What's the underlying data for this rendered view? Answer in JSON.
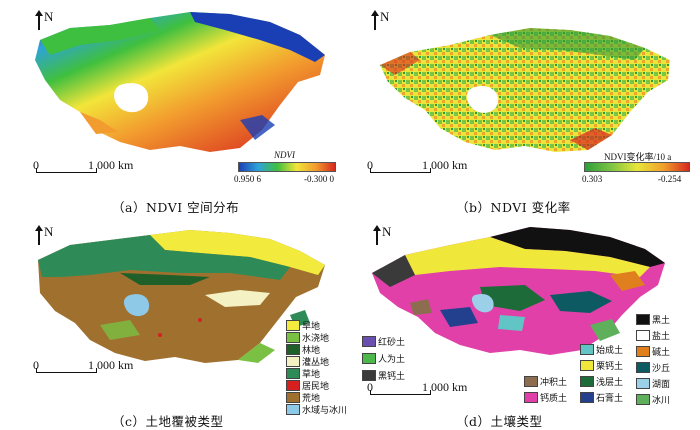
{
  "panels": {
    "a": {
      "caption": "（a）NDVI 空间分布",
      "north_label": "N",
      "scale_zero": "0",
      "scale_distance": "1 000 km",
      "colorbar": {
        "title": "NDVI",
        "left_label": "0.950 6",
        "right_label": "-0.300 0",
        "colors": [
          "#1a3fb5",
          "#2ea3d8",
          "#3fbf3f",
          "#f2e53a",
          "#f29b2e",
          "#d7281e"
        ]
      }
    },
    "b": {
      "caption": "（b）NDVI 变化率",
      "north_label": "N",
      "scale_zero": "0",
      "scale_distance": "1 000 km",
      "colorbar": {
        "title": "NDVI变化率/10 a",
        "left_label": "0.303",
        "right_label": "-0.254",
        "colors": [
          "#2e9d3a",
          "#7cc443",
          "#e7e63b",
          "#f0a22b",
          "#d7281e"
        ]
      }
    },
    "c": {
      "caption": "（c）土地覆被类型",
      "north_label": "N",
      "scale_zero": "0",
      "scale_distance": "1 000 km",
      "legend": [
        {
          "label": "旱地",
          "color": "#f2ea3c"
        },
        {
          "label": "水浇地",
          "color": "#7ac143"
        },
        {
          "label": "林地",
          "color": "#1f5f2a"
        },
        {
          "label": "灌丛地",
          "color": "#f4f1c5"
        },
        {
          "label": "草地",
          "color": "#2e8b57"
        },
        {
          "label": "居民地",
          "color": "#d62020"
        },
        {
          "label": "荒地",
          "color": "#a0702e"
        },
        {
          "label": "水域与冰川",
          "color": "#8ec9e8"
        }
      ]
    },
    "d": {
      "caption": "（d）土壤类型",
      "north_label": "N",
      "scale_zero": "0",
      "scale_distance": "1 000 km",
      "legend_left": [
        {
          "label": "红砂土",
          "color": "#6a4fb0"
        },
        {
          "label": "人为土",
          "color": "#4cb84c"
        },
        {
          "label": "黑钙土",
          "color": "#3a3a3a"
        }
      ],
      "legend_mid": [
        {
          "label": "冲积土",
          "color": "#8c6d4f"
        },
        {
          "label": "钙质土",
          "color": "#e040a8"
        }
      ],
      "legend_right": [
        {
          "label": "始成土",
          "color": "#62c5c5"
        },
        {
          "label": "栗钙土",
          "color": "#efe83a"
        },
        {
          "label": "浅层土",
          "color": "#1e6b3a"
        },
        {
          "label": "石膏土",
          "color": "#23408e"
        }
      ],
      "legend_far": [
        {
          "label": "黑土",
          "color": "#111111"
        },
        {
          "label": "盐土",
          "color": "#ffffff"
        },
        {
          "label": "碱土",
          "color": "#e07f1e"
        },
        {
          "label": "沙丘",
          "color": "#0e5a63"
        },
        {
          "label": "湖面",
          "color": "#9bd0e8"
        },
        {
          "label": "冰川",
          "color": "#5fb05a"
        }
      ]
    }
  }
}
